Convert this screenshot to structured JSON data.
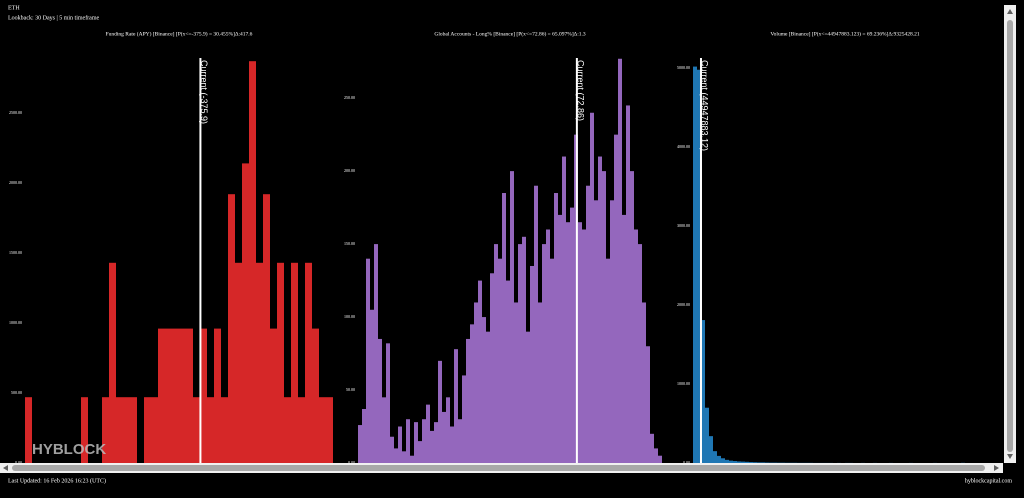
{
  "header": {
    "asset": "ETH",
    "lookback": "Lookback: 30 Days | 5 min timeframe"
  },
  "footer": {
    "updated": "Last Updated: 16 Feb 2026 16:23 (UTC)",
    "site": "hyblockcapital.com"
  },
  "watermark": "HYBLOCK",
  "chart_data": [
    {
      "type": "histogram",
      "title": "Funding Rate (APY) [Binance] [P(x<=-375.9) = 30.455%]Δ:417.6",
      "color": "#d62728",
      "bins": [
        -10400,
        -10000,
        -9600,
        -9200,
        -8800,
        -8400,
        -8000,
        -7600,
        -7200,
        -6800,
        -6400,
        -6000,
        -5600,
        -5200,
        -4800,
        -4400,
        -4000,
        -3600,
        -3200,
        -2800,
        -2400,
        -2000,
        -1600,
        -1200,
        -800,
        -400,
        0,
        400,
        800,
        1200,
        1600,
        2000,
        2400,
        2800,
        3200,
        3600,
        4000,
        4400,
        4800,
        5200,
        5600,
        6000,
        6400,
        6800,
        7200
      ],
      "values": [
        470,
        0,
        0,
        0,
        0,
        0,
        0,
        0,
        470,
        0,
        0,
        470,
        1430,
        470,
        470,
        470,
        0,
        470,
        470,
        960,
        960,
        960,
        960,
        960,
        470,
        960,
        470,
        960,
        470,
        1920,
        1430,
        2140,
        2870,
        1430,
        1920,
        960,
        1430,
        470,
        1430,
        470,
        1430,
        960,
        470,
        470
      ],
      "xlim": [
        -10400,
        7200
      ],
      "ylim": [
        0,
        2950
      ],
      "yticks": [
        {
          "value": 0,
          "label": "0.00"
        },
        {
          "value": 500,
          "label": "500.00"
        },
        {
          "value": 1000,
          "label": "1000.00"
        },
        {
          "value": 1500,
          "label": "1500.00"
        },
        {
          "value": 2000,
          "label": "2000.00"
        },
        {
          "value": 2500,
          "label": "2500.00"
        }
      ],
      "annotation": {
        "value": -375.9,
        "label": "Current (-375.9)"
      }
    },
    {
      "type": "histogram",
      "title": "Global Accounts - Long% [Binance] [P(x<=72.86) = 65.097%]Δ:1.3",
      "color": "#9467bd",
      "bins": [
        45.5,
        46,
        46.5,
        47,
        47.5,
        48,
        48.5,
        49,
        49.5,
        50,
        50.5,
        51,
        51.5,
        52,
        52.5,
        53,
        53.5,
        54,
        54.5,
        55,
        55.5,
        56,
        56.5,
        57,
        57.5,
        58,
        58.5,
        59,
        59.5,
        60,
        60.5,
        61,
        61.5,
        62,
        62.5,
        63,
        63.5,
        64,
        64.5,
        65,
        65.5,
        66,
        66.5,
        67,
        67.5,
        68,
        68.5,
        69,
        69.5,
        70,
        70.5,
        71,
        71.5,
        72,
        72.5,
        73,
        73.5,
        74,
        74.5,
        75,
        75.5,
        76,
        76.5,
        77,
        77.5,
        78,
        78.5,
        79,
        79.5,
        80,
        80.5,
        81,
        81.5,
        82,
        82.5,
        83,
        83.5
      ],
      "values": [
        26,
        37,
        140,
        105,
        150,
        85,
        45,
        82,
        18,
        10,
        25,
        8,
        30,
        5,
        28,
        15,
        30,
        40,
        22,
        28,
        70,
        35,
        45,
        25,
        78,
        30,
        60,
        85,
        95,
        110,
        125,
        100,
        90,
        130,
        150,
        140,
        185,
        125,
        200,
        110,
        150,
        155,
        90,
        135,
        190,
        110,
        150,
        160,
        140,
        185,
        170,
        210,
        165,
        175,
        225,
        165,
        160,
        190,
        240,
        180,
        210,
        200,
        140,
        180,
        225,
        277,
        170,
        245,
        200,
        160,
        150,
        110,
        80,
        20,
        10,
        5
      ],
      "xlim": [
        45.5,
        83.5
      ],
      "ylim": [
        0,
        283
      ],
      "yticks": [
        {
          "value": 0,
          "label": "0.00"
        },
        {
          "value": 50,
          "label": "50.00"
        },
        {
          "value": 100,
          "label": "100.00"
        },
        {
          "value": 150,
          "label": "150.00"
        },
        {
          "value": 200,
          "label": "200.00"
        },
        {
          "value": 250,
          "label": "250.00"
        }
      ],
      "annotation": {
        "value": 72.86,
        "label": "Current (72.86)"
      }
    },
    {
      "type": "histogram",
      "title": "Volume [Binance] [P(x<=44947883.123) = 69.236%]Δ:9325428.21",
      "color": "#1f77b4",
      "bins": [
        5000000,
        25000000,
        45000000,
        65000000,
        85000000,
        105000000,
        125000000,
        145000000,
        165000000,
        185000000,
        205000000,
        225000000,
        245000000,
        265000000,
        285000000,
        305000000,
        325000000,
        345000000,
        365000000,
        385000000,
        405000000,
        425000000,
        445000000,
        465000000,
        485000000,
        505000000,
        525000000,
        545000000,
        565000000,
        585000000,
        605000000,
        625000000,
        645000000,
        665000000,
        685000000,
        705000000,
        725000000,
        745000000,
        765000000,
        785000000,
        805000000,
        825000000,
        845000000,
        865000000,
        885000000,
        905000000,
        925000000,
        945000000,
        965000000,
        985000000,
        1005000000,
        1025000000,
        1045000000,
        1065000000,
        1085000000,
        1105000000,
        1125000000,
        1145000000,
        1165000000,
        1185000000,
        1205000000,
        1225000000,
        1245000000,
        1265000000,
        1285000000,
        1305000000,
        1325000000,
        1345000000,
        1365000000,
        1385000000,
        1405000000,
        1425000000,
        1445000000,
        1465000000,
        1485000000,
        1505000000,
        1525000000
      ],
      "values": [
        5020,
        4980,
        1810,
        700,
        340,
        150,
        90,
        60,
        40,
        30,
        25,
        20,
        18,
        15,
        12,
        10,
        8,
        8,
        6,
        5,
        5,
        4,
        4,
        3,
        3,
        3,
        2,
        2,
        2,
        2,
        1,
        1,
        1,
        1,
        1,
        0,
        1,
        0,
        1,
        1,
        0,
        0,
        1,
        0,
        0,
        1,
        0,
        0,
        0,
        1,
        0,
        0,
        0,
        0,
        1,
        0,
        0,
        0,
        0,
        0,
        1,
        0,
        0,
        0,
        0,
        0,
        0,
        2,
        0,
        0,
        0,
        0,
        0,
        0,
        0,
        0
      ],
      "xlim": [
        5000000,
        1525000000
      ],
      "ylim": [
        0,
        5230
      ],
      "yticks": [
        {
          "value": 0,
          "label": "0.00"
        },
        {
          "value": 1000,
          "label": "1000.00"
        },
        {
          "value": 2000,
          "label": "2000.00"
        },
        {
          "value": 3000,
          "label": "3000.00"
        },
        {
          "value": 4000,
          "label": "4000.00"
        },
        {
          "value": 5000,
          "label": "5000.00"
        }
      ],
      "annotation": {
        "value": 44947883.12,
        "label": "Current (44947883.12)"
      }
    }
  ]
}
